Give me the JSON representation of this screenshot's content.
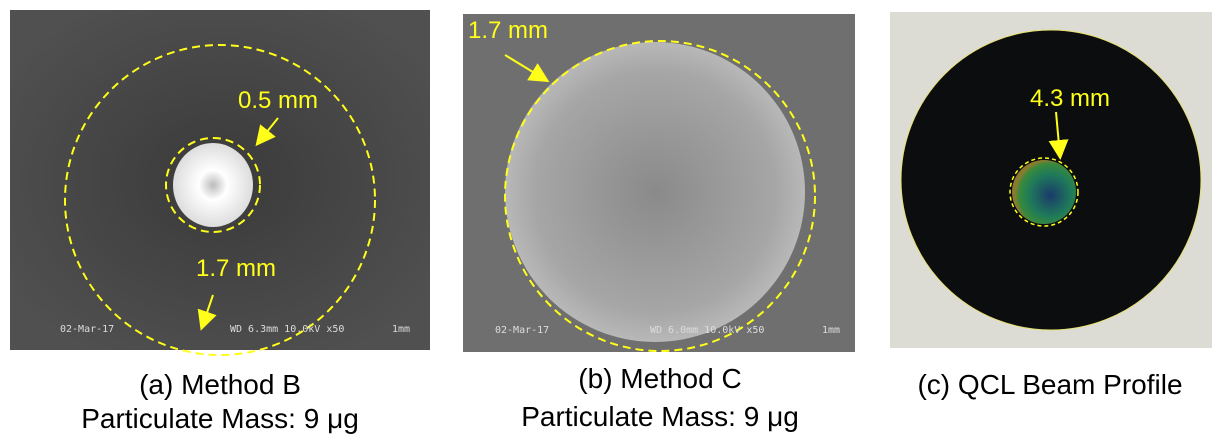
{
  "panels": [
    {
      "annotations": [
        "0.5 mm",
        "1.7 mm"
      ],
      "info_bar": [
        "02-Mar-17",
        "WD 6.3mm 10.0kV x50",
        "1mm"
      ],
      "caption": [
        "(a) Method B",
        "Particulate Mass: 9 μg"
      ]
    },
    {
      "annotations": [
        "1.7 mm"
      ],
      "info_bar": [
        "02-Mar-17",
        "WD 6.0mm 10.0kV x50",
        "1mm"
      ],
      "caption": [
        "(b) Method C",
        "Particulate Mass: 9 μg"
      ]
    },
    {
      "annotations": [
        "4.3 mm"
      ],
      "caption": [
        "(c) QCL Beam Profile"
      ]
    }
  ]
}
